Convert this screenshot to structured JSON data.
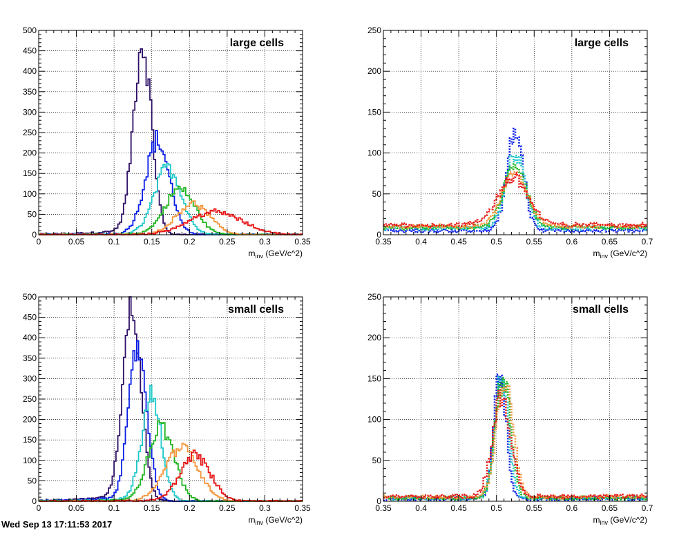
{
  "footer_text": "Wed Sep 13 17:11:53 2017",
  "colors": {
    "purple": "#2e0f66",
    "blue": "#0a1ee6",
    "cyan": "#1ec8c8",
    "green": "#1eb41e",
    "orange": "#f5963c",
    "red": "#e61414"
  },
  "chart_data": [
    {
      "type": "histogram",
      "label": "large cells",
      "xlabel_main": "m",
      "xlabel_sub": "inv",
      "xlabel_rest": " (GeV/c^2)",
      "xlim": [
        0,
        0.35
      ],
      "ylim": [
        0,
        500
      ],
      "xticks": [
        "0",
        "0.05",
        "0.1",
        "0.15",
        "0.2",
        "0.25",
        "0.3",
        "0.35"
      ],
      "yticks": [
        "0",
        "50",
        "100",
        "150",
        "200",
        "250",
        "300",
        "350",
        "400",
        "450",
        "500"
      ],
      "line_style": "solid",
      "grid": true,
      "series": [
        {
          "color": "purple",
          "peaks": [
            [
              0.138,
              460,
              0.012
            ]
          ],
          "tail": 0
        },
        {
          "color": "blue",
          "peaks": [
            [
              0.158,
              225,
              0.016
            ]
          ],
          "tail": 0
        },
        {
          "color": "cyan",
          "peaks": [
            [
              0.172,
              160,
              0.018
            ]
          ],
          "tail": 0
        },
        {
          "color": "green",
          "peaks": [
            [
              0.188,
              110,
              0.02
            ]
          ],
          "tail": 0
        },
        {
          "color": "orange",
          "peaks": [
            [
              0.205,
              75,
              0.022
            ]
          ],
          "tail": 0
        },
        {
          "color": "red",
          "peaks": [
            [
              0.235,
              55,
              0.035
            ]
          ],
          "tail": 0
        }
      ]
    },
    {
      "type": "histogram",
      "label": "large cells",
      "xlabel_main": "m",
      "xlabel_sub": "inv",
      "xlabel_rest": " (GeV/c^2)",
      "xlim": [
        0.35,
        0.7
      ],
      "ylim": [
        0,
        250
      ],
      "xticks": [
        "0.35",
        "0.4",
        "0.45",
        "0.5",
        "0.55",
        "0.6",
        "0.65",
        "0.7"
      ],
      "yticks": [
        "0",
        "50",
        "100",
        "150",
        "200",
        "250"
      ],
      "line_style": "dotted",
      "grid": true,
      "series": [
        {
          "color": "blue",
          "peaks": [
            [
              0.525,
              120,
              0.011
            ]
          ],
          "tail": 5
        },
        {
          "color": "cyan",
          "peaks": [
            [
              0.525,
              90,
              0.013
            ]
          ],
          "tail": 8
        },
        {
          "color": "green",
          "peaks": [
            [
              0.525,
              78,
              0.015
            ]
          ],
          "tail": 9
        },
        {
          "color": "orange",
          "peaks": [
            [
              0.525,
              65,
              0.017
            ]
          ],
          "tail": 10
        },
        {
          "color": "red",
          "peaks": [
            [
              0.522,
              58,
              0.02
            ]
          ],
          "tail": 12
        }
      ]
    },
    {
      "type": "histogram",
      "label": "small cells",
      "xlabel_main": "m",
      "xlabel_sub": "inv",
      "xlabel_rest": " (GeV/c^2)",
      "xlim": [
        0,
        0.35
      ],
      "ylim": [
        0,
        500
      ],
      "xticks": [
        "0",
        "0.05",
        "0.1",
        "0.15",
        "0.2",
        "0.25",
        "0.3",
        "0.35"
      ],
      "yticks": [
        "0",
        "50",
        "100",
        "150",
        "200",
        "250",
        "300",
        "350",
        "400",
        "450",
        "500"
      ],
      "line_style": "solid",
      "grid": true,
      "series": [
        {
          "color": "purple",
          "peaks": [
            [
              0.124,
              480,
              0.012
            ]
          ],
          "tail": 0
        },
        {
          "color": "blue",
          "peaks": [
            [
              0.132,
              370,
              0.012
            ]
          ],
          "tail": 0
        },
        {
          "color": "cyan",
          "peaks": [
            [
              0.15,
              250,
              0.013
            ]
          ],
          "tail": 0
        },
        {
          "color": "green",
          "peaks": [
            [
              0.163,
              180,
              0.017
            ]
          ],
          "tail": 0
        },
        {
          "color": "orange",
          "peaks": [
            [
              0.19,
              130,
              0.022
            ]
          ],
          "tail": 0
        },
        {
          "color": "red",
          "peaks": [
            [
              0.208,
              110,
              0.02
            ]
          ],
          "tail": 0
        }
      ]
    },
    {
      "type": "histogram",
      "label": "small cells",
      "xlabel_main": "m",
      "xlabel_sub": "inv",
      "xlabel_rest": " (GeV/c^2)",
      "xlim": [
        0.35,
        0.7
      ],
      "ylim": [
        0,
        250
      ],
      "xticks": [
        "0.35",
        "0.4",
        "0.45",
        "0.5",
        "0.55",
        "0.6",
        "0.65",
        "0.7"
      ],
      "yticks": [
        "0",
        "50",
        "100",
        "150",
        "200",
        "250"
      ],
      "line_style": "dotted",
      "grid": true,
      "series": [
        {
          "color": "blue",
          "peaks": [
            [
              0.505,
              155,
              0.008
            ]
          ],
          "tail": 3
        },
        {
          "color": "cyan",
          "peaks": [
            [
              0.507,
              150,
              0.009
            ]
          ],
          "tail": 4
        },
        {
          "color": "green",
          "peaks": [
            [
              0.509,
              145,
              0.01
            ]
          ],
          "tail": 4
        },
        {
          "color": "orange",
          "peaks": [
            [
              0.511,
              140,
              0.011
            ]
          ],
          "tail": 5
        },
        {
          "color": "red",
          "peaks": [
            [
              0.507,
              125,
              0.012
            ]
          ],
          "tail": 6
        }
      ]
    }
  ]
}
